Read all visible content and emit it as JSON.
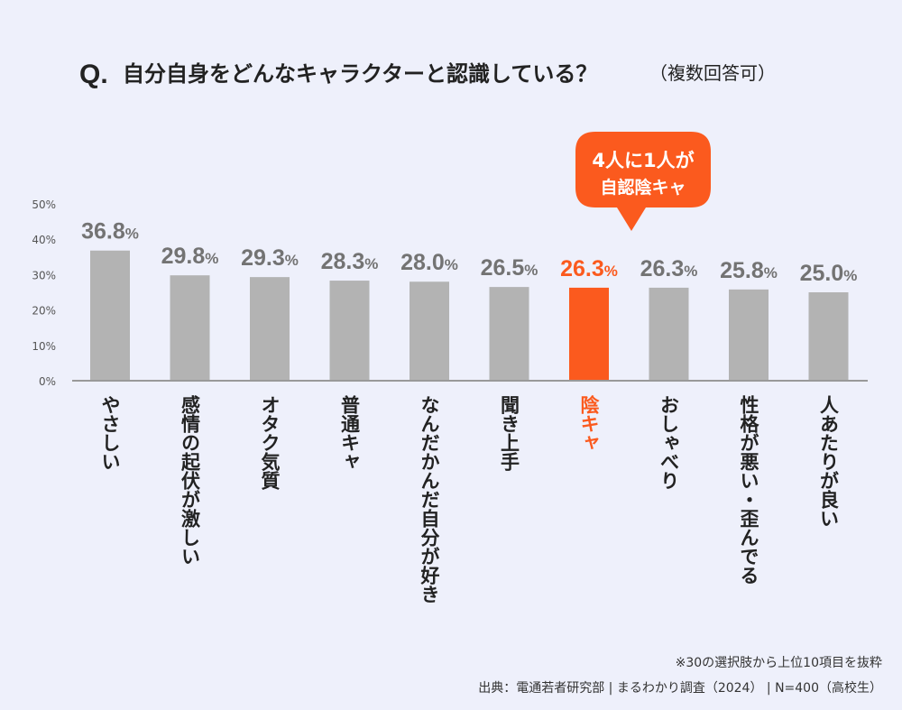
{
  "header": {
    "q_prefix": "Q.",
    "question": "自分自身をどんなキャラクターと認識している？",
    "qualifier": "（複数回答可）"
  },
  "callout": {
    "line1": "4人に1人が",
    "line2": "自認陰キャ"
  },
  "chart_data": {
    "type": "bar",
    "title": "自分自身をどんなキャラクターと認識している？（複数回答可）",
    "categories": [
      "やさしい",
      "感情の起伏が激しい",
      "オタク気質",
      "普通キャ",
      "なんだかんだ自分が好き",
      "聞き上手",
      "陰キャ",
      "おしゃべり",
      "性格が悪い・歪んでる",
      "人あたりが良い"
    ],
    "values": [
      36.8,
      29.8,
      29.3,
      28.3,
      28.0,
      26.5,
      26.3,
      26.3,
      25.8,
      25.0
    ],
    "value_labels": [
      "36.8",
      "29.8",
      "29.3",
      "28.3",
      "28.0",
      "26.5",
      "26.3",
      "26.3",
      "25.8",
      "25.0"
    ],
    "unit": "%",
    "highlight_index": 6,
    "ylim": [
      0,
      50
    ],
    "yticks": [
      0,
      10,
      20,
      30,
      40,
      50
    ],
    "ytick_labels": [
      "0%",
      "10%",
      "20%",
      "30%",
      "40%",
      "50%"
    ],
    "xlabel": "",
    "ylabel": ""
  },
  "colors": {
    "bar": "#b3b3b3",
    "highlight": "#fb5a1e",
    "value_text": "#737373",
    "axis": "#999999",
    "background": "#eef0fb",
    "title": "#222222"
  },
  "footer": {
    "note": "※30の選択肢から上位10項目を抜粋",
    "source": "出典：電通若者研究部 | まるわかり調査（2024） | N=400（高校生）"
  }
}
